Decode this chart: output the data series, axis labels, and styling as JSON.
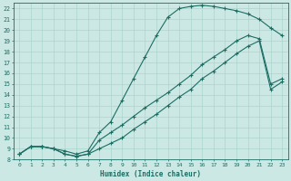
{
  "xlabel": "Humidex (Indice chaleur)",
  "bg_color": "#cce8e4",
  "line_color": "#1a6e64",
  "grid_color": "#aad4ce",
  "xlim": [
    -0.5,
    23.5
  ],
  "ylim": [
    8,
    22.5
  ],
  "xticks": [
    0,
    1,
    2,
    3,
    4,
    5,
    6,
    7,
    8,
    9,
    10,
    11,
    12,
    13,
    14,
    15,
    16,
    17,
    18,
    19,
    20,
    21,
    22,
    23
  ],
  "yticks": [
    8,
    9,
    10,
    11,
    12,
    13,
    14,
    15,
    16,
    17,
    18,
    19,
    20,
    21,
    22
  ],
  "curve1_x": [
    0,
    1,
    2,
    3,
    4,
    5,
    6,
    7,
    8,
    9,
    10,
    11,
    12,
    13,
    14,
    15,
    16,
    17,
    18,
    19,
    20,
    21,
    22,
    23
  ],
  "curve1_y": [
    8.5,
    9.2,
    9.2,
    9.0,
    8.8,
    8.5,
    8.8,
    10.5,
    11.5,
    13.5,
    15.5,
    17.5,
    19.5,
    21.2,
    22.0,
    22.2,
    22.3,
    22.2,
    22.0,
    21.8,
    21.5,
    21.0,
    20.2,
    19.5
  ],
  "curve2_x": [
    0,
    1,
    2,
    3,
    4,
    5,
    6,
    7,
    8,
    9,
    10,
    11,
    12,
    13,
    14,
    15,
    16,
    17,
    18,
    19,
    20,
    21,
    22,
    23
  ],
  "curve2_y": [
    8.5,
    9.2,
    9.2,
    9.0,
    8.5,
    8.3,
    8.5,
    9.0,
    9.5,
    10.0,
    10.8,
    11.5,
    12.2,
    13.0,
    13.8,
    14.5,
    15.5,
    16.2,
    17.0,
    17.8,
    18.5,
    19.0,
    14.5,
    15.2
  ],
  "curve3_x": [
    0,
    1,
    2,
    3,
    4,
    5,
    6,
    7,
    8,
    9,
    10,
    11,
    12,
    13,
    14,
    15,
    16,
    17,
    18,
    19,
    20,
    21,
    22,
    23
  ],
  "curve3_y": [
    8.5,
    9.2,
    9.2,
    9.0,
    8.5,
    8.3,
    8.5,
    9.8,
    10.5,
    11.2,
    12.0,
    12.8,
    13.5,
    14.2,
    15.0,
    15.8,
    16.8,
    17.5,
    18.2,
    19.0,
    19.5,
    19.2,
    15.0,
    15.5
  ]
}
